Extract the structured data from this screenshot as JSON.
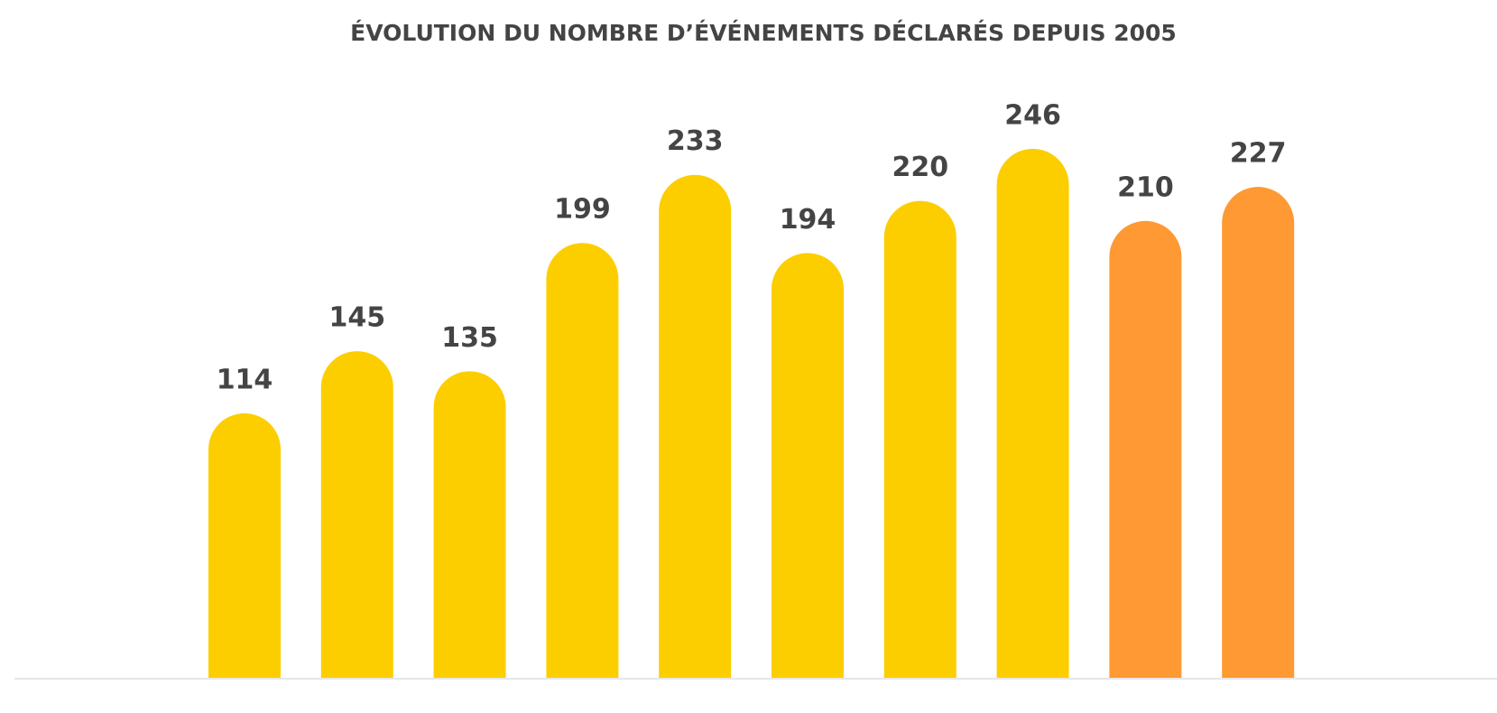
{
  "chart_data": {
    "type": "bar",
    "title": "ÉVOLUTION DU NOMBRE D’ÉVÉNEMENTS DÉCLARÉS DEPUIS 2005",
    "categories": [
      null,
      null,
      null,
      null,
      null,
      null,
      null,
      null,
      null,
      null
    ],
    "values": [
      114,
      145,
      135,
      199,
      233,
      194,
      220,
      246,
      210,
      227
    ],
    "colors": [
      "#fcce00",
      "#fcce00",
      "#fcce00",
      "#fcce00",
      "#fcce00",
      "#fcce00",
      "#fcce00",
      "#fcce00",
      "#ff9933",
      "#ff9933"
    ],
    "ylim": [
      0,
      300
    ]
  }
}
